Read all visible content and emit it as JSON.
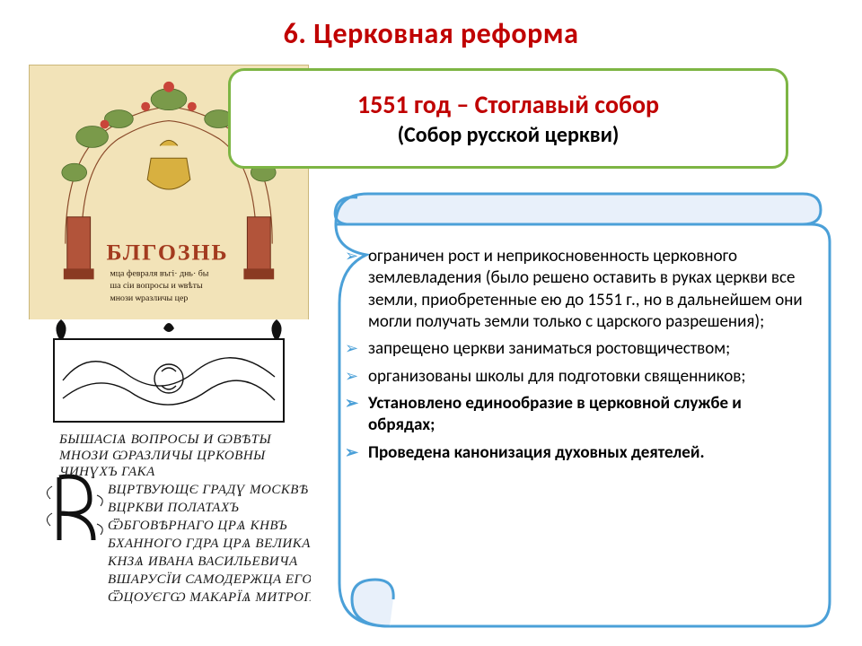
{
  "colors": {
    "title": "#c00000",
    "green_border": "#7db544",
    "green_line1": "#c00000",
    "green_line2": "#000000",
    "scroll_border": "#4ba0d8",
    "scroll_fill": "#ffffff",
    "scroll_header_fill": "#e8f0fa",
    "bullet_color": "#4ba0d8",
    "parchment_bg": "#f2e3b8",
    "ink_red": "#a33b1f",
    "ink_dark": "#2a1a0a"
  },
  "title": "6. Церковная реформа",
  "green_box": {
    "line1": "1551 год – Стоглавый собор",
    "line2": "(Собор русской церкви)"
  },
  "bullets": [
    {
      "text": "ограничен рост и  неприкосновенность церковного землевладения (было решено оставить в руках церкви все земли, приобретенные ею до 1551 г., но в дальнейшем они могли получать земли только с царского разрешения);",
      "bold": false
    },
    {
      "text": "запрещено церкви заниматься ростовщичеством;",
      "bold": false
    },
    {
      "text": "организованы школы для подготовки священников;",
      "bold": false
    },
    {
      "text": "Установлено единообразие в церковной службе и обрядах;",
      "bold": true
    },
    {
      "text": "Проведена канонизация духовных деятелей.",
      "bold": true
    }
  ],
  "manuscript2_lines": [
    "БЫШАСІѦ ВОПРОСЫ И ѠВѢТЫ",
    "МНОЗИ ѠРАЗЛИЧЫ ЦРКОВНЫ",
    "ЧИНƔХЪ       ГАКА",
    "ВЦРТВУЮЩЄ ГРАДƔ МОСКВѢ",
    "ВЦРКВИ    ПОЛАТАХЪ",
    "ѾБГОВѢРНАГО ЦРѦ КНВЪ",
    "БХАННОГО ГДРА ЦРѦ ВЕЛИКА",
    "КНЗѦ ИВАНА ВАСИЛЬЕВИЧА",
    "ВШАРУСЇИ САМОДЕРЖЦА ЕГО",
    "ѾЦОУЄГѠ МАКАРЇѦ МИТРОПОЛ"
  ]
}
